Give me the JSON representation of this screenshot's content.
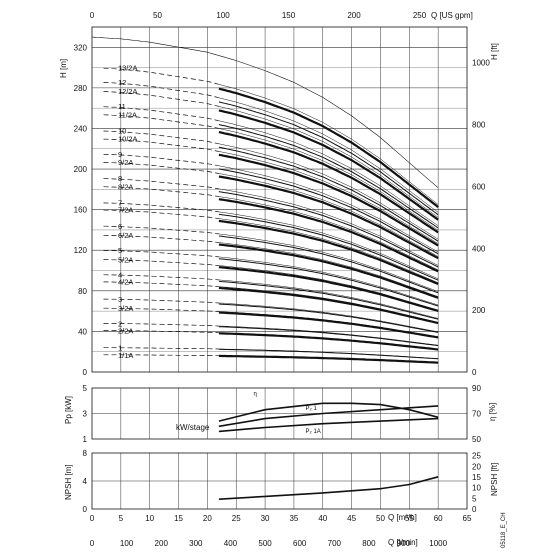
{
  "chart_data": [
    {
      "type": "line",
      "panel": "head",
      "ylabel": "H [m]",
      "y2label": "H [ft]",
      "x2label": "Q [US gpm]",
      "ylim": [
        0,
        340
      ],
      "y_ticks": [
        "0",
        "40",
        "80",
        "120",
        "160",
        "200",
        "240",
        "280",
        "320"
      ],
      "y2_ticks": [
        "0",
        "200",
        "400",
        "600",
        "800",
        "1000"
      ],
      "x2_ticks": [
        "0",
        "50",
        "100",
        "150",
        "200",
        "250"
      ],
      "grid": true,
      "curve_labels": [
        "1/1A",
        "1",
        "2/2A",
        "2",
        "3/2A",
        "3",
        "4/2A",
        "4",
        "5/2A",
        "5",
        "6/2A",
        "6",
        "7/2A",
        "7",
        "8/2A",
        "8",
        "9/2A",
        "9",
        "10/2A",
        "10",
        "11/2A",
        "11",
        "12/2A",
        "12",
        "13/2A"
      ],
      "series_shutoff_head_m": [
        17,
        24,
        41,
        48,
        63,
        72,
        89,
        96,
        111,
        120,
        135,
        144,
        160,
        167,
        183,
        191,
        207,
        215,
        230,
        238,
        254,
        262,
        277,
        286,
        300
      ],
      "q_curve_x": [
        0,
        5,
        10,
        15,
        20,
        25,
        30,
        35,
        40,
        45,
        50,
        55,
        60
      ],
      "head_fraction_of_shutoff": [
        1.0,
        0.995,
        0.985,
        0.97,
        0.955,
        0.93,
        0.9,
        0.865,
        0.82,
        0.765,
        0.7,
        0.625,
        0.55
      ],
      "q_range_m3h": [
        0,
        65
      ],
      "dashed_below_q_m3h": 22,
      "bold_range_q_m3h": [
        22,
        60
      ]
    },
    {
      "type": "line",
      "panel": "power-efficiency",
      "ylabel": "Pp [kW]",
      "y2label": "η [%]",
      "ylim": [
        1,
        5
      ],
      "y_ticks": [
        "1",
        "3",
        "5"
      ],
      "y2_ticks": [
        "50",
        "70",
        "90"
      ],
      "annotation": "kW/stage",
      "series": [
        {
          "name": "η",
          "x": [
            22,
            30,
            40,
            45,
            50,
            55,
            60
          ],
          "values": [
            64,
            73,
            78,
            78,
            77,
            73,
            67
          ]
        },
        {
          "name": "P₂ 1",
          "x": [
            22,
            30,
            40,
            50,
            60
          ],
          "values": [
            2.0,
            2.6,
            3.0,
            3.3,
            3.6
          ]
        },
        {
          "name": "P₂ 1A",
          "x": [
            22,
            30,
            40,
            50,
            60
          ],
          "values": [
            1.6,
            1.9,
            2.2,
            2.4,
            2.6
          ]
        }
      ]
    },
    {
      "type": "line",
      "panel": "npsh",
      "ylabel": "NPSH [m]",
      "y2label": "NPSH [ft]",
      "ylim": [
        0,
        8
      ],
      "y_ticks": [
        "0",
        "4",
        "8"
      ],
      "y2_ticks": [
        "0",
        "5",
        "10",
        "15",
        "20",
        "25"
      ],
      "xlabel": "Q [m³/h]",
      "x_ticks": [
        "0",
        "5",
        "10",
        "15",
        "20",
        "25",
        "30",
        "35",
        "40",
        "45",
        "50",
        "55",
        "60",
        "65"
      ],
      "x3label": "Q [l/min]",
      "x3_ticks": [
        "0",
        "100",
        "200",
        "300",
        "400",
        "500",
        "600",
        "700",
        "800",
        "900",
        "1000"
      ],
      "series": [
        {
          "name": "NPSH",
          "x": [
            22,
            30,
            40,
            50,
            55,
            60
          ],
          "values": [
            1.4,
            1.8,
            2.3,
            2.9,
            3.5,
            4.6
          ]
        }
      ]
    }
  ],
  "footer_code": "05118_E_CH"
}
